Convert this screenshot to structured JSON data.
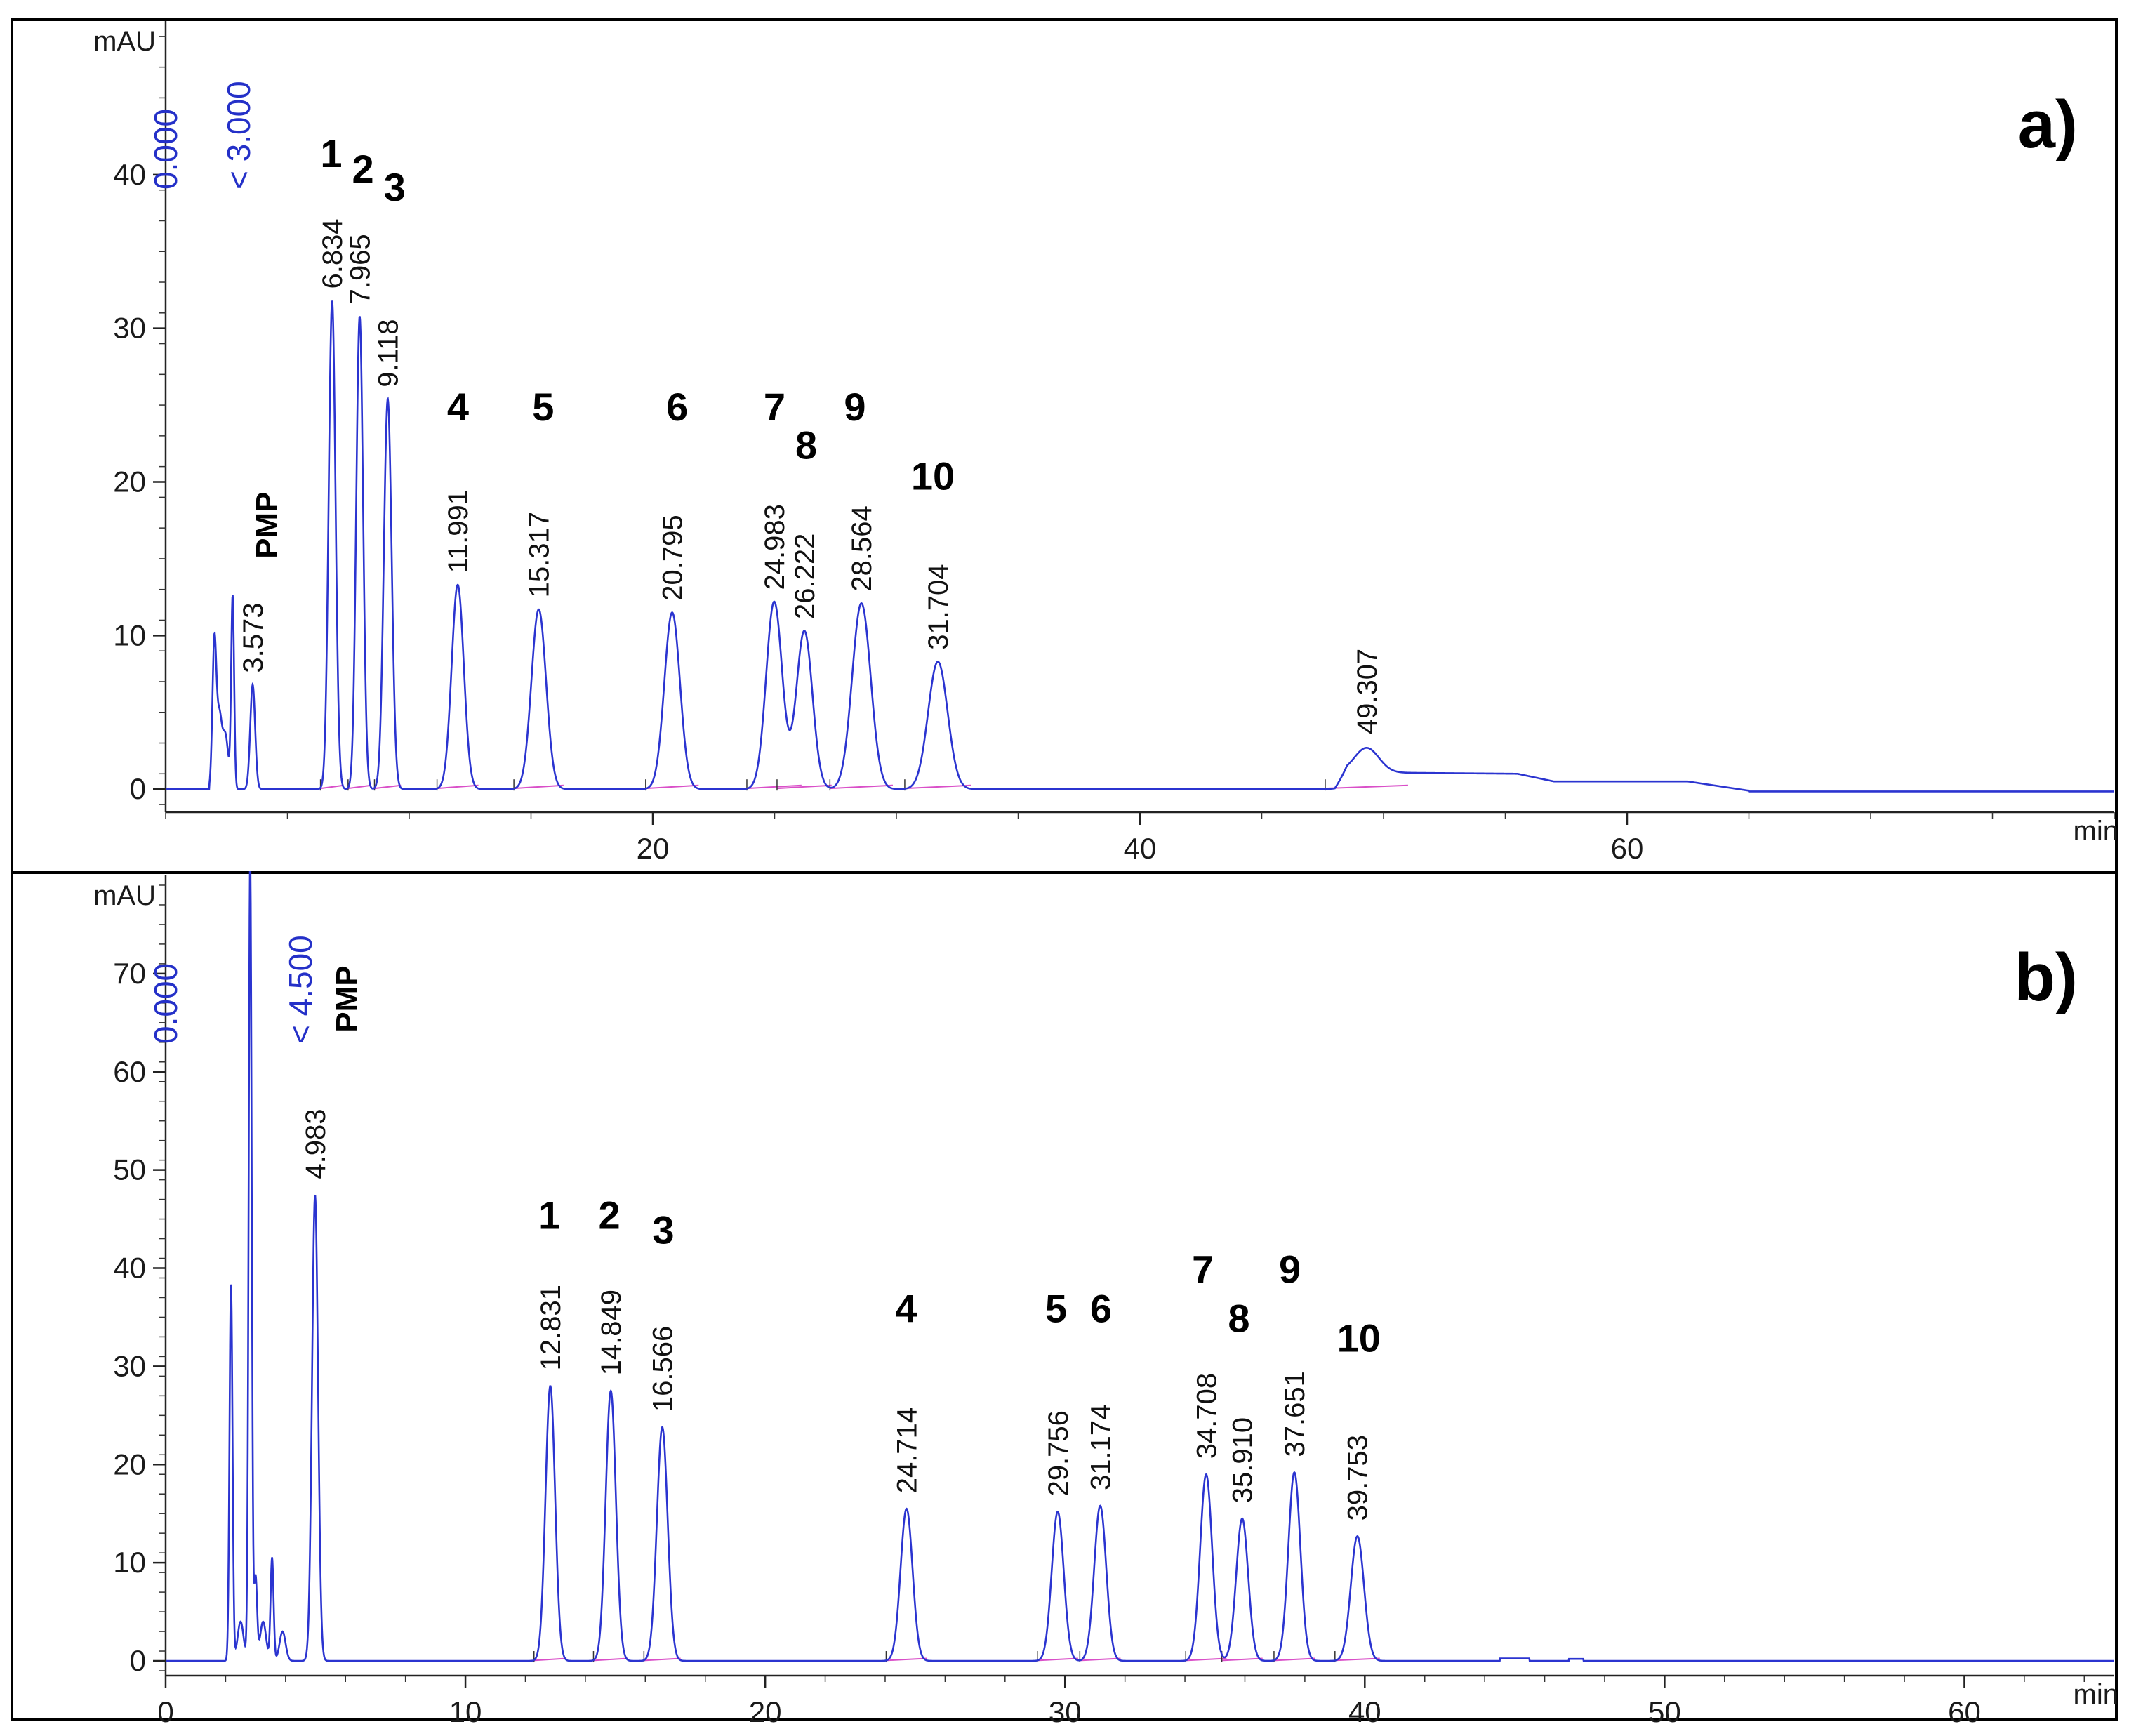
{
  "chart_data": [
    {
      "type": "line",
      "panel_label": "a)",
      "ylabel": "mAU",
      "xlabel": "min",
      "xlim": [
        0,
        80
      ],
      "ylim": [
        -1.5,
        50
      ],
      "x_ticks": [
        20,
        40,
        60
      ],
      "y_ticks": [
        0,
        10,
        20,
        30,
        40
      ],
      "colors": {
        "trace": "#2b34d0",
        "baseline": "#d94fc8",
        "events": "#2430c8"
      },
      "events": [
        "0.000",
        "< 3.000"
      ],
      "events_x": [
        0.0,
        3.0
      ],
      "peaks": [
        {
          "rt": 2.0,
          "height": 9.5,
          "width": 0.08
        },
        {
          "rt": 2.2,
          "height": 4.5,
          "width": 0.1
        },
        {
          "rt": 2.45,
          "height": 3.5,
          "width": 0.12
        },
        {
          "rt": 2.75,
          "height": 12.5,
          "width": 0.06
        },
        {
          "rt": 3.573,
          "height": 6.8,
          "width": 0.1
        },
        {
          "rt": 6.834,
          "height": 31.8,
          "width": 0.14
        },
        {
          "rt": 7.965,
          "height": 30.8,
          "width": 0.14
        },
        {
          "rt": 9.118,
          "height": 25.4,
          "width": 0.16
        },
        {
          "rt": 11.991,
          "height": 13.3,
          "width": 0.25
        },
        {
          "rt": 15.317,
          "height": 11.7,
          "width": 0.3
        },
        {
          "rt": 20.795,
          "height": 11.5,
          "width": 0.32
        },
        {
          "rt": 24.983,
          "height": 12.2,
          "width": 0.33
        },
        {
          "rt": 26.222,
          "height": 10.3,
          "width": 0.33
        },
        {
          "rt": 28.564,
          "height": 12.1,
          "width": 0.38
        },
        {
          "rt": 31.704,
          "height": 8.3,
          "width": 0.4
        },
        {
          "rt": 49.307,
          "height": 1.6,
          "width": 0.5
        }
      ],
      "retention_time_labels": [
        {
          "text": "3.573",
          "x": 3.573,
          "y": 7.2
        },
        {
          "text": "6.834",
          "x": 6.834,
          "y": 32.2
        },
        {
          "text": "7.965",
          "x": 7.965,
          "y": 31.2
        },
        {
          "text": "9.118",
          "x": 9.118,
          "y": 25.8
        },
        {
          "text": "11.991",
          "x": 11.991,
          "y": 13.7
        },
        {
          "text": "15.317",
          "x": 15.317,
          "y": 12.1
        },
        {
          "text": "20.795",
          "x": 20.795,
          "y": 11.9
        },
        {
          "text": "24.983",
          "x": 24.983,
          "y": 12.6
        },
        {
          "text": "26.222",
          "x": 26.222,
          "y": 10.7
        },
        {
          "text": "28.564",
          "x": 28.564,
          "y": 12.5
        },
        {
          "text": "31.704",
          "x": 31.704,
          "y": 8.7
        },
        {
          "text": "49.307",
          "x": 49.307,
          "y": 3.2
        }
      ],
      "peak_numbers": [
        {
          "text": "PMP",
          "x": 3.6,
          "y": 15.0
        },
        {
          "text": "1",
          "x": 6.8,
          "y": 40.5
        },
        {
          "text": "2",
          "x": 8.1,
          "y": 39.5
        },
        {
          "text": "3",
          "x": 9.4,
          "y": 38.3
        },
        {
          "text": "4",
          "x": 12.0,
          "y": 24.0
        },
        {
          "text": "5",
          "x": 15.5,
          "y": 24.0
        },
        {
          "text": "6",
          "x": 21.0,
          "y": 24.0
        },
        {
          "text": "7",
          "x": 25.0,
          "y": 24.0
        },
        {
          "text": "8",
          "x": 26.3,
          "y": 21.5
        },
        {
          "text": "9",
          "x": 28.3,
          "y": 24.0
        },
        {
          "text": "10",
          "x": 31.5,
          "y": 19.5
        }
      ]
    },
    {
      "type": "line",
      "panel_label": "b)",
      "ylabel": "mAU",
      "xlabel": "min",
      "xlim": [
        0,
        65
      ],
      "ylim": [
        -1.5,
        80
      ],
      "x_ticks": [
        0,
        10,
        20,
        30,
        40,
        50,
        60
      ],
      "y_ticks": [
        0,
        10,
        20,
        30,
        40,
        50,
        60,
        70
      ],
      "colors": {
        "trace": "#2b34d0",
        "baseline": "#d94fc8",
        "events": "#2430c8"
      },
      "events": [
        "0.000",
        "< 4.500"
      ],
      "events_x": [
        0.0,
        4.5
      ],
      "peaks": [
        {
          "rt": 2.18,
          "height": 38.5,
          "width": 0.05
        },
        {
          "rt": 2.5,
          "height": 4.0,
          "width": 0.1
        },
        {
          "rt": 2.82,
          "height": 82.0,
          "width": 0.05
        },
        {
          "rt": 3.0,
          "height": 8.5,
          "width": 0.05
        },
        {
          "rt": 3.25,
          "height": 4.0,
          "width": 0.1
        },
        {
          "rt": 3.55,
          "height": 10.5,
          "width": 0.05
        },
        {
          "rt": 3.9,
          "height": 3.0,
          "width": 0.1
        },
        {
          "rt": 4.983,
          "height": 47.5,
          "width": 0.1
        },
        {
          "rt": 12.831,
          "height": 28.0,
          "width": 0.16
        },
        {
          "rt": 14.849,
          "height": 27.5,
          "width": 0.17
        },
        {
          "rt": 16.566,
          "height": 23.8,
          "width": 0.18
        },
        {
          "rt": 24.714,
          "height": 15.5,
          "width": 0.2
        },
        {
          "rt": 29.756,
          "height": 15.2,
          "width": 0.2
        },
        {
          "rt": 31.174,
          "height": 15.8,
          "width": 0.2
        },
        {
          "rt": 34.708,
          "height": 19.0,
          "width": 0.2
        },
        {
          "rt": 35.91,
          "height": 14.5,
          "width": 0.2
        },
        {
          "rt": 37.651,
          "height": 19.2,
          "width": 0.2
        },
        {
          "rt": 39.753,
          "height": 12.7,
          "width": 0.22
        }
      ],
      "retention_time_labels": [
        {
          "text": "4.983",
          "x": 4.983,
          "y": 48.5
        },
        {
          "text": "12.831",
          "x": 12.831,
          "y": 29.0
        },
        {
          "text": "14.849",
          "x": 14.849,
          "y": 28.5
        },
        {
          "text": "16.566",
          "x": 16.566,
          "y": 24.8
        },
        {
          "text": "24.714",
          "x": 24.714,
          "y": 16.5
        },
        {
          "text": "29.756",
          "x": 29.756,
          "y": 16.2
        },
        {
          "text": "31.174",
          "x": 31.174,
          "y": 16.8
        },
        {
          "text": "34.708",
          "x": 34.708,
          "y": 20.0
        },
        {
          "text": "35.910",
          "x": 35.91,
          "y": 15.5
        },
        {
          "text": "37.651",
          "x": 37.651,
          "y": 20.2
        },
        {
          "text": "39.753",
          "x": 39.753,
          "y": 13.7
        }
      ],
      "peak_numbers": [
        {
          "text": "PMP",
          "x": 5.6,
          "y": 64.0
        },
        {
          "text": "1",
          "x": 12.8,
          "y": 44.0
        },
        {
          "text": "2",
          "x": 14.8,
          "y": 44.0
        },
        {
          "text": "3",
          "x": 16.6,
          "y": 42.5
        },
        {
          "text": "4",
          "x": 24.7,
          "y": 34.5
        },
        {
          "text": "5",
          "x": 29.7,
          "y": 34.5
        },
        {
          "text": "6",
          "x": 31.2,
          "y": 34.5
        },
        {
          "text": "7",
          "x": 34.6,
          "y": 38.5
        },
        {
          "text": "8",
          "x": 35.8,
          "y": 33.5
        },
        {
          "text": "9",
          "x": 37.5,
          "y": 38.5
        },
        {
          "text": "10",
          "x": 39.8,
          "y": 31.5
        }
      ]
    }
  ]
}
